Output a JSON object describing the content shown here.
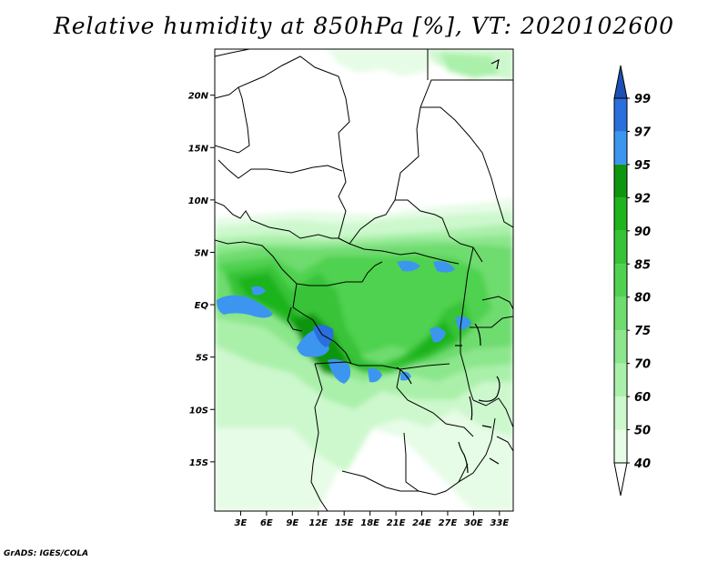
{
  "title": "Relative humidity at 850hPa [%], VT: 2020102600",
  "credit": "GrADS: IGES/COLA",
  "map": {
    "lon_range": [
      0,
      34.6
    ],
    "lat_range": [
      -19.7,
      24.4
    ],
    "lat_ticks": [
      {
        "value": 20,
        "label": "20N"
      },
      {
        "value": 15,
        "label": "15N"
      },
      {
        "value": 10,
        "label": "10N"
      },
      {
        "value": 5,
        "label": "5N"
      },
      {
        "value": 0,
        "label": "EQ"
      },
      {
        "value": -5,
        "label": "5S"
      },
      {
        "value": -10,
        "label": "10S"
      },
      {
        "value": -15,
        "label": "15S"
      }
    ],
    "lon_ticks": [
      {
        "value": 3,
        "label": "3E"
      },
      {
        "value": 6,
        "label": "6E"
      },
      {
        "value": 9,
        "label": "9E"
      },
      {
        "value": 12,
        "label": "12E"
      },
      {
        "value": 15,
        "label": "15E"
      },
      {
        "value": 18,
        "label": "18E"
      },
      {
        "value": 21,
        "label": "21E"
      },
      {
        "value": 24,
        "label": "24E"
      },
      {
        "value": 27,
        "label": "27E"
      },
      {
        "value": 30,
        "label": "30E"
      },
      {
        "value": 33,
        "label": "33E"
      }
    ]
  },
  "colorbar": {
    "levels": [
      "40",
      "50",
      "60",
      "70",
      "75",
      "80",
      "85",
      "90",
      "92",
      "95",
      "97",
      "99"
    ],
    "colors": [
      "#ffffff",
      "#e6fce6",
      "#cdf8cd",
      "#aaf0aa",
      "#8ce68c",
      "#6edc6e",
      "#50d250",
      "#37c337",
      "#1eb41e",
      "#0f960f",
      "#3c96f0",
      "#2a6fdb",
      "#1e50b4"
    ]
  }
}
